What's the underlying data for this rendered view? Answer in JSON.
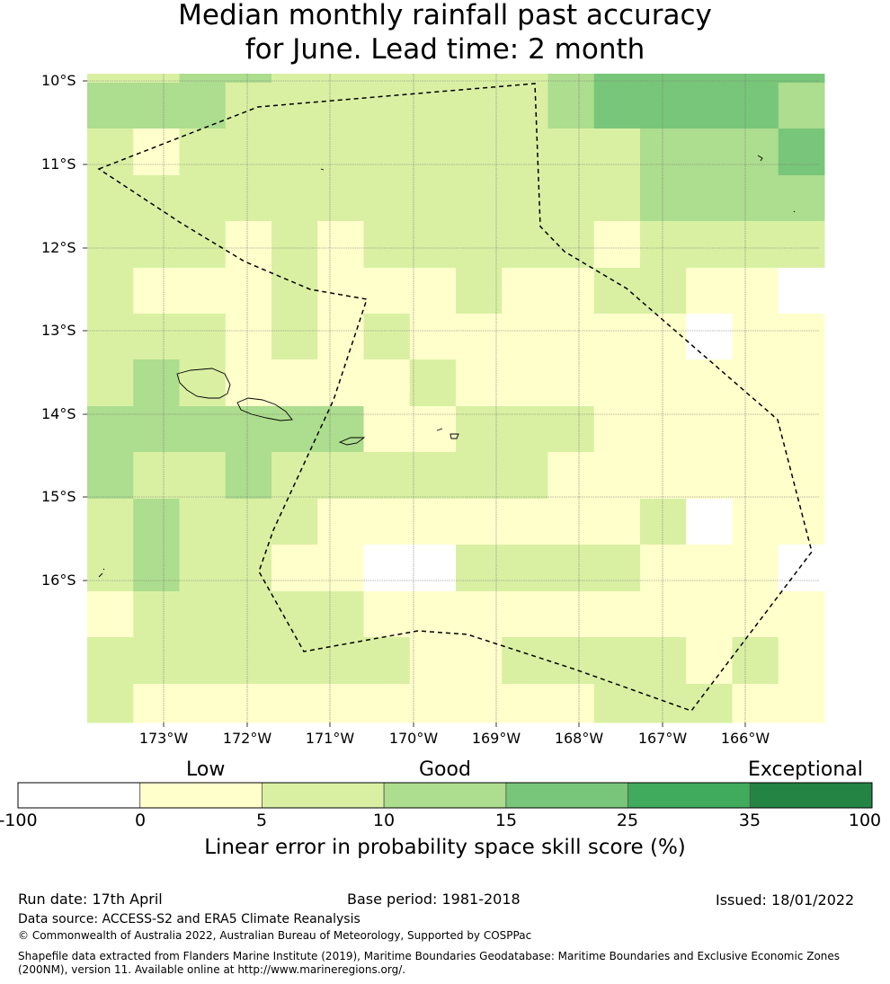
{
  "title": {
    "line1": "Median monthly rainfall past accuracy",
    "line2": "for June. Lead time: 2 month"
  },
  "map": {
    "lat_labels": [
      "10°S",
      "11°S",
      "12°S",
      "13°S",
      "14°S",
      "15°S",
      "16°S"
    ],
    "lon_labels": [
      "173°W",
      "172°W",
      "171°W",
      "170°W",
      "169°W",
      "168°W",
      "167°W",
      "166°W"
    ],
    "grid": [
      [
        2,
        2,
        3,
        3,
        2,
        2,
        2,
        2,
        2,
        2,
        3,
        4,
        4,
        4,
        4,
        4
      ],
      [
        3,
        3,
        3,
        2,
        2,
        2,
        2,
        2,
        2,
        2,
        3,
        4,
        4,
        4,
        4,
        3
      ],
      [
        2,
        1,
        2,
        2,
        2,
        2,
        2,
        2,
        2,
        2,
        2,
        2,
        3,
        3,
        3,
        4
      ],
      [
        2,
        2,
        2,
        2,
        2,
        2,
        2,
        2,
        2,
        2,
        2,
        2,
        3,
        3,
        3,
        3
      ],
      [
        2,
        2,
        2,
        1,
        2,
        1,
        2,
        2,
        2,
        2,
        2,
        1,
        2,
        2,
        2,
        2
      ],
      [
        2,
        1,
        1,
        1,
        2,
        1,
        1,
        1,
        2,
        1,
        1,
        2,
        2,
        1,
        1,
        0
      ],
      [
        2,
        2,
        2,
        1,
        2,
        1,
        2,
        1,
        1,
        1,
        1,
        1,
        1,
        0,
        1,
        1
      ],
      [
        2,
        3,
        2,
        1,
        1,
        1,
        1,
        2,
        1,
        1,
        1,
        1,
        1,
        1,
        1,
        1
      ],
      [
        3,
        3,
        3,
        3,
        3,
        3,
        1,
        1,
        2,
        2,
        2,
        1,
        1,
        1,
        1,
        1
      ],
      [
        3,
        2,
        2,
        3,
        2,
        2,
        2,
        2,
        2,
        2,
        1,
        1,
        1,
        1,
        1,
        1
      ],
      [
        2,
        3,
        2,
        2,
        2,
        1,
        1,
        1,
        1,
        1,
        1,
        1,
        2,
        0,
        1,
        1
      ],
      [
        2,
        3,
        2,
        2,
        1,
        1,
        0,
        0,
        2,
        2,
        2,
        2,
        1,
        1,
        1,
        0
      ],
      [
        1,
        2,
        2,
        2,
        2,
        2,
        1,
        1,
        1,
        1,
        1,
        1,
        1,
        1,
        1,
        1
      ],
      [
        2,
        2,
        2,
        2,
        2,
        2,
        2,
        1,
        1,
        2,
        2,
        2,
        2,
        1,
        2,
        1
      ],
      [
        2,
        1,
        1,
        1,
        1,
        1,
        1,
        1,
        1,
        1,
        1,
        2,
        2,
        2,
        1,
        1
      ]
    ]
  },
  "colorbar": {
    "categories": [
      "Low",
      "Good",
      "Exceptional"
    ],
    "ticks": [
      "-100",
      "0",
      "5",
      "10",
      "15",
      "25",
      "35",
      "100"
    ],
    "colors": [
      "#ffffff",
      "#ffffcc",
      "#d9f0a3",
      "#addd8e",
      "#78c679",
      "#41ab5d",
      "#238443"
    ],
    "title": "Linear error in probability space skill score (%)"
  },
  "footer": {
    "run_date": "Run date: 17th April",
    "base_period": "Base period: 1981-2018",
    "issued": "Issued: 18/01/2022",
    "data_source": "Data source: ACCESS-S2 and ERA5 Climate Reanalysis",
    "copyright": "© Commonwealth of Australia 2022, Australian Bureau of Meteorology, Supported by COSPPac",
    "shapefile_line1": "Shapefile data extracted from Flanders Marine Institute (2019), Maritime Boundaries Geodatabase: Maritime Boundaries and Exclusive Economic Zones",
    "shapefile_line2": "(200NM), version 11. Available online at http://www.marineregions.org/."
  }
}
